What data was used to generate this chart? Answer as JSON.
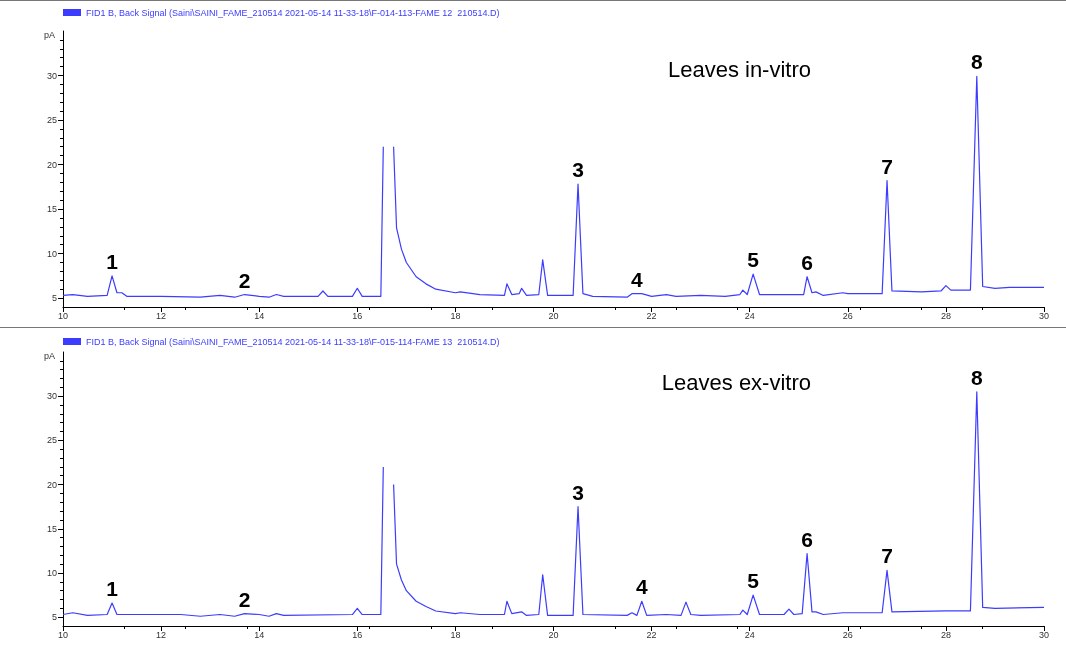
{
  "chart_data": [
    {
      "type": "line",
      "title": "Leaves in-vitro",
      "ylabel": "pA",
      "legend": "top left",
      "grid": false,
      "marker": "none",
      "line_style": "solid",
      "xlim": [
        10,
        30
      ],
      "xticks": [
        10,
        12,
        14,
        16,
        18,
        20,
        22,
        24,
        26,
        28,
        30
      ],
      "ylim": [
        4,
        35
      ],
      "yticks": [
        5,
        10,
        15,
        20,
        25,
        30
      ],
      "series": [
        {
          "name": "FID1 B, Back Signal (Saini\\SAINI_FAME_210514 2021-05-14 11-33-18\\F-014-113-FAME 12  210514.D)",
          "color": "#3c3cff",
          "x": [
            10.0,
            10.2,
            10.5,
            10.9,
            11.0,
            11.1,
            11.2,
            11.3,
            12.0,
            12.8,
            13.2,
            13.5,
            13.7,
            14.0,
            14.2,
            14.35,
            14.5,
            15.2,
            15.3,
            15.4,
            15.9,
            16.0,
            16.1,
            16.48,
            16.53,
            16.56,
            16.7,
            16.74,
            16.8,
            16.9,
            17.0,
            17.2,
            17.4,
            17.6,
            18.0,
            18.1,
            18.5,
            19.0,
            19.05,
            19.15,
            19.3,
            19.35,
            19.45,
            19.7,
            19.78,
            19.88,
            20.4,
            20.5,
            20.6,
            20.8,
            21.5,
            21.6,
            21.8,
            22.0,
            22.3,
            22.5,
            23.0,
            23.5,
            23.8,
            23.86,
            23.95,
            24.07,
            24.2,
            25.0,
            25.1,
            25.17,
            25.27,
            25.35,
            25.5,
            25.9,
            26.0,
            26.7,
            26.8,
            26.9,
            27.5,
            27.9,
            28.0,
            28.1,
            28.5,
            28.63,
            28.75,
            29.0,
            29.3,
            30.0
          ],
          "values": [
            5.3,
            5.4,
            5.2,
            5.3,
            7.5,
            5.6,
            5.6,
            5.2,
            5.2,
            5.1,
            5.3,
            5.1,
            5.4,
            5.2,
            5.1,
            5.4,
            5.2,
            5.2,
            5.8,
            5.2,
            5.2,
            6.1,
            5.2,
            5.2,
            22,
            null,
            null,
            22,
            12.9,
            10.5,
            9.0,
            7.4,
            6.6,
            6.0,
            5.6,
            5.7,
            5.4,
            5.3,
            6.6,
            5.4,
            5.5,
            6.1,
            5.3,
            5.4,
            9.3,
            5.3,
            5.3,
            17.8,
            5.5,
            5.2,
            5.1,
            5.5,
            5.5,
            5.2,
            5.4,
            5.2,
            5.3,
            5.2,
            5.4,
            5.9,
            5.4,
            7.7,
            5.4,
            5.4,
            5.4,
            7.4,
            5.6,
            5.7,
            5.3,
            5.6,
            5.5,
            5.5,
            18.2,
            5.8,
            5.7,
            5.8,
            6.4,
            5.9,
            5.9,
            29.9,
            6.3,
            6.1,
            6.2,
            6.2
          ]
        }
      ],
      "annotations": [
        {
          "text": "1",
          "x": 11.0,
          "y": 7.5
        },
        {
          "text": "2",
          "x": 13.7,
          "y": 5.4
        },
        {
          "text": "3",
          "x": 20.5,
          "y": 17.8
        },
        {
          "text": "4",
          "x": 21.7,
          "y": 5.5
        },
        {
          "text": "5",
          "x": 24.07,
          "y": 7.7
        },
        {
          "text": "6",
          "x": 25.17,
          "y": 7.4
        },
        {
          "text": "7",
          "x": 26.8,
          "y": 18.2
        },
        {
          "text": "8",
          "x": 28.63,
          "y": 29.9
        }
      ]
    },
    {
      "type": "line",
      "title": "Leaves ex-vitro",
      "ylabel": "pA",
      "legend": "top left",
      "grid": false,
      "marker": "none",
      "line_style": "solid",
      "xlim": [
        10,
        30
      ],
      "xticks": [
        10,
        12,
        14,
        16,
        18,
        20,
        22,
        24,
        26,
        28,
        30
      ],
      "ylim": [
        4,
        35
      ],
      "yticks": [
        5,
        10,
        15,
        20,
        25,
        30
      ],
      "series": [
        {
          "name": "FID1 B, Back Signal (Saini\\SAINI_FAME_210514 2021-05-14 11-33-18\\F-015-114-FAME 13  210514.D)",
          "color": "#3c3cff",
          "x": [
            10.0,
            10.2,
            10.5,
            10.9,
            11.0,
            11.1,
            12.0,
            12.4,
            12.8,
            13.2,
            13.5,
            13.7,
            14.0,
            14.2,
            14.35,
            14.5,
            15.9,
            16.0,
            16.1,
            16.48,
            16.53,
            16.56,
            16.7,
            16.74,
            16.8,
            16.9,
            17.0,
            17.2,
            17.4,
            17.6,
            18.0,
            18.1,
            18.5,
            19.0,
            19.05,
            19.15,
            19.35,
            19.45,
            19.7,
            19.78,
            19.88,
            20.4,
            20.5,
            20.6,
            21.5,
            21.6,
            21.7,
            21.8,
            21.9,
            22.3,
            22.6,
            22.7,
            22.8,
            23.0,
            23.8,
            23.86,
            23.95,
            24.07,
            24.2,
            24.7,
            24.8,
            24.9,
            25.07,
            25.17,
            25.27,
            25.35,
            25.5,
            25.9,
            26.7,
            26.8,
            26.9,
            28.0,
            28.5,
            28.63,
            28.75,
            29.0,
            30.0
          ],
          "values": [
            5.3,
            5.5,
            5.2,
            5.3,
            6.6,
            5.3,
            5.3,
            5.3,
            5.1,
            5.3,
            5.1,
            5.4,
            5.3,
            5.1,
            5.4,
            5.2,
            5.3,
            6.0,
            5.3,
            5.3,
            22,
            null,
            null,
            20,
            11.0,
            9.2,
            8.0,
            6.8,
            6.2,
            5.7,
            5.4,
            5.5,
            5.3,
            5.3,
            6.8,
            5.4,
            5.6,
            5.2,
            5.3,
            9.8,
            5.2,
            5.2,
            17.5,
            5.3,
            5.2,
            5.5,
            5.2,
            6.8,
            5.2,
            5.3,
            5.2,
            6.7,
            5.3,
            5.2,
            5.3,
            5.8,
            5.3,
            7.5,
            5.3,
            5.3,
            5.9,
            5.3,
            5.4,
            12.2,
            5.6,
            5.6,
            5.3,
            5.5,
            5.5,
            10.3,
            5.6,
            5.7,
            5.7,
            30.5,
            6.1,
            6.0,
            6.1
          ]
        }
      ],
      "annotations": [
        {
          "text": "1",
          "x": 11.0,
          "y": 6.6
        },
        {
          "text": "2",
          "x": 13.7,
          "y": 5.4
        },
        {
          "text": "3",
          "x": 20.5,
          "y": 17.5
        },
        {
          "text": "4",
          "x": 21.8,
          "y": 6.8
        },
        {
          "text": "5",
          "x": 24.07,
          "y": 7.5
        },
        {
          "text": "6",
          "x": 25.17,
          "y": 12.2
        },
        {
          "text": "7",
          "x": 26.8,
          "y": 10.3
        },
        {
          "text": "8",
          "x": 28.63,
          "y": 30.5
        }
      ]
    }
  ]
}
